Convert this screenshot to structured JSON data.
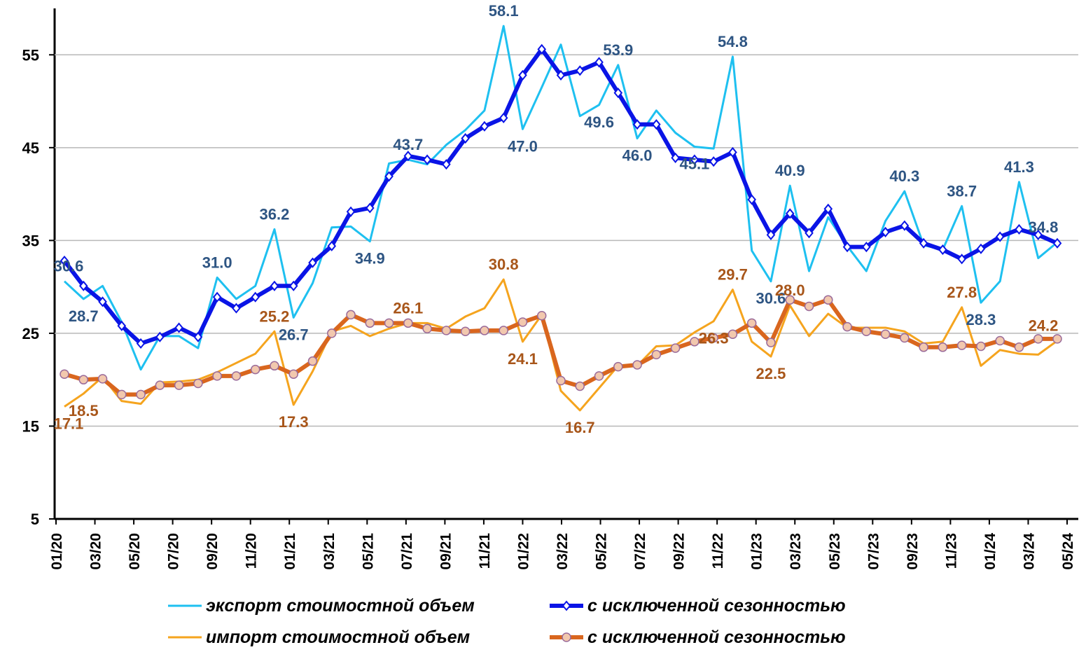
{
  "chart_data": {
    "type": "line",
    "categories": [
      "01/20",
      null,
      "03/20",
      null,
      "05/20",
      null,
      "07/20",
      null,
      "09/20",
      null,
      "11/20",
      null,
      "01/21",
      null,
      "03/21",
      null,
      "05/21",
      null,
      "07/21",
      null,
      "09/21",
      null,
      "11/21",
      null,
      "01/22",
      null,
      "03/22",
      null,
      "05/22",
      null,
      "07/22",
      null,
      "09/22",
      null,
      "11/22",
      null,
      "01/23",
      null,
      "03/23",
      null,
      "05/23",
      null,
      "07/23",
      null,
      "09/23",
      null,
      "11/23",
      null,
      "01/24",
      null,
      "03/24",
      null,
      "05/24"
    ],
    "ylim": [
      5,
      60
    ],
    "yticks": [
      5,
      15,
      25,
      35,
      45,
      55
    ],
    "grid": true,
    "series": [
      {
        "name": "экспорт стоимостной объем",
        "color": "#1ec0f0",
        "values": [
          30.6,
          28.7,
          30.1,
          26.2,
          21.1,
          24.7,
          24.7,
          23.4,
          31.0,
          28.7,
          30.1,
          36.2,
          26.7,
          30.4,
          36.4,
          36.5,
          34.9,
          43.3,
          43.7,
          43.2,
          45.3,
          46.9,
          49.0,
          58.1,
          47.0,
          51.5,
          56.1,
          48.4,
          49.6,
          53.9,
          46.0,
          49.0,
          46.6,
          45.1,
          44.9,
          54.8,
          33.9,
          30.6,
          40.9,
          31.7,
          37.5,
          34.4,
          31.7,
          37.1,
          40.3,
          34.5,
          34.0,
          38.7,
          28.3,
          30.6,
          41.3,
          33.1,
          34.8
        ],
        "value_labels": [
          "30.6",
          "28.7",
          null,
          null,
          null,
          null,
          null,
          null,
          "31.0",
          null,
          null,
          "36.2",
          "26.7",
          null,
          null,
          null,
          "34.9",
          null,
          "43.7",
          null,
          null,
          null,
          null,
          "58.1",
          "47.0",
          null,
          null,
          null,
          "49.6",
          "53.9",
          "46.0",
          null,
          null,
          "45.1",
          null,
          "54.8",
          null,
          "30.6",
          "40.9",
          null,
          null,
          null,
          null,
          null,
          "40.3",
          null,
          null,
          "38.7",
          "28.3",
          null,
          "41.3",
          null,
          "34.8"
        ]
      },
      {
        "name": "с исключенной сезонностью",
        "color": "#0a14e6",
        "values": [
          32.8,
          30.1,
          28.4,
          25.8,
          23.9,
          24.6,
          25.6,
          24.6,
          28.9,
          27.7,
          28.9,
          30.1,
          30.1,
          32.6,
          34.4,
          38.1,
          38.5,
          41.9,
          44.1,
          43.7,
          43.2,
          46.0,
          47.3,
          48.2,
          52.8,
          55.6,
          52.8,
          53.3,
          54.2,
          50.9,
          47.5,
          47.5,
          43.9,
          43.7,
          43.5,
          44.5,
          39.4,
          35.6,
          37.9,
          35.8,
          38.4,
          34.3,
          34.3,
          35.9,
          36.6,
          34.7,
          34.0,
          33.0,
          34.1,
          35.4,
          36.2,
          35.6,
          34.7
        ]
      },
      {
        "name": "импорт стоимостной объем",
        "color": "#f5a41e",
        "values": [
          17.1,
          18.5,
          20.3,
          17.7,
          17.4,
          19.7,
          19.8,
          20.0,
          20.8,
          21.8,
          22.8,
          25.2,
          17.3,
          20.9,
          25.2,
          25.8,
          24.7,
          25.5,
          26.1,
          26.1,
          25.5,
          26.8,
          27.7,
          30.8,
          24.1,
          27.0,
          18.8,
          16.7,
          19.1,
          21.5,
          21.5,
          23.6,
          23.7,
          25.1,
          26.3,
          29.7,
          24.1,
          22.5,
          28.0,
          24.7,
          27.1,
          25.6,
          25.6,
          25.6,
          25.2,
          23.9,
          24.1,
          27.8,
          21.5,
          23.2,
          22.8,
          22.7,
          24.2
        ],
        "value_labels": [
          "17.1",
          "18.5",
          null,
          null,
          null,
          null,
          null,
          null,
          null,
          null,
          null,
          "25.2",
          "17.3",
          null,
          null,
          null,
          null,
          null,
          "26.1",
          null,
          null,
          null,
          null,
          "30.8",
          "24.1",
          null,
          null,
          "16.7",
          null,
          null,
          null,
          null,
          null,
          null,
          "26.3",
          "29.7",
          null,
          "22.5",
          "28.0",
          null,
          null,
          null,
          null,
          null,
          null,
          null,
          null,
          "27.8",
          null,
          null,
          null,
          null,
          "24.2"
        ]
      },
      {
        "name": "с исключенной сезонностью",
        "color": "#d9661e",
        "values": [
          20.6,
          20.0,
          20.1,
          18.4,
          18.4,
          19.4,
          19.4,
          19.6,
          20.4,
          20.4,
          21.1,
          21.5,
          20.6,
          22.0,
          25.0,
          27.0,
          26.1,
          26.1,
          26.1,
          25.5,
          25.3,
          25.2,
          25.3,
          25.3,
          26.2,
          26.9,
          19.9,
          19.3,
          20.4,
          21.4,
          21.6,
          22.7,
          23.4,
          24.1,
          24.5,
          24.9,
          26.1,
          24.0,
          28.6,
          27.9,
          28.6,
          25.7,
          25.2,
          24.9,
          24.5,
          23.5,
          23.5,
          23.7,
          23.6,
          24.2,
          23.5,
          24.4,
          24.4
        ]
      }
    ]
  }
}
